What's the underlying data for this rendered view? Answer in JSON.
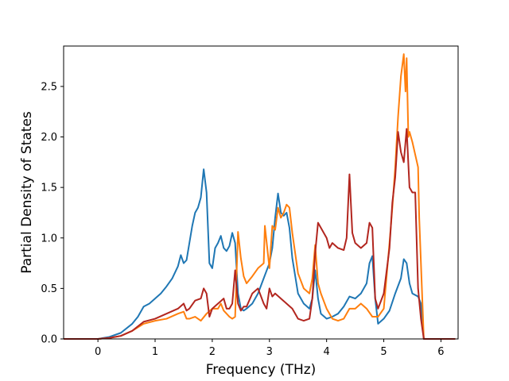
{
  "chart_data": {
    "type": "line",
    "title": "",
    "xlabel": "Frequency (THz)",
    "ylabel": "Partial Density of States",
    "xlim": [
      -0.6,
      6.3
    ],
    "ylim": [
      0.0,
      2.9
    ],
    "xticks": [
      0,
      1,
      2,
      3,
      4,
      5,
      6
    ],
    "yticks": [
      0.0,
      0.5,
      1.0,
      1.5,
      2.0,
      2.5
    ],
    "xtick_labels": [
      "0",
      "1",
      "2",
      "3",
      "4",
      "5",
      "6"
    ],
    "ytick_labels": [
      "0.0",
      "0.5",
      "1.0",
      "1.5",
      "2.0",
      "2.5"
    ],
    "grid": false,
    "legend": false,
    "series": [
      {
        "color": "#1f77b4",
        "x": [
          -0.6,
          -0.1,
          0.0,
          0.2,
          0.4,
          0.6,
          0.7,
          0.8,
          0.9,
          1.0,
          1.1,
          1.2,
          1.3,
          1.4,
          1.45,
          1.5,
          1.55,
          1.6,
          1.65,
          1.7,
          1.75,
          1.8,
          1.85,
          1.9,
          1.95,
          2.0,
          2.05,
          2.1,
          2.15,
          2.2,
          2.25,
          2.3,
          2.35,
          2.4,
          2.45,
          2.5,
          2.55,
          2.6,
          2.7,
          2.8,
          2.9,
          3.0,
          3.05,
          3.1,
          3.15,
          3.2,
          3.25,
          3.3,
          3.35,
          3.4,
          3.5,
          3.6,
          3.7,
          3.75,
          3.8,
          3.85,
          3.9,
          4.0,
          4.1,
          4.2,
          4.3,
          4.4,
          4.5,
          4.6,
          4.7,
          4.75,
          4.8,
          4.85,
          4.9,
          5.0,
          5.1,
          5.2,
          5.3,
          5.35,
          5.4,
          5.45,
          5.5,
          5.6,
          5.65,
          5.7,
          6.25
        ],
        "y": [
          0.0,
          0.0,
          0.0,
          0.02,
          0.06,
          0.15,
          0.22,
          0.32,
          0.35,
          0.4,
          0.45,
          0.52,
          0.6,
          0.72,
          0.83,
          0.75,
          0.78,
          0.95,
          1.12,
          1.25,
          1.3,
          1.4,
          1.68,
          1.45,
          0.75,
          0.7,
          0.9,
          0.95,
          1.02,
          0.9,
          0.87,
          0.92,
          1.05,
          0.95,
          0.45,
          0.3,
          0.28,
          0.3,
          0.35,
          0.45,
          0.6,
          0.75,
          0.9,
          1.2,
          1.44,
          1.25,
          1.22,
          1.25,
          1.1,
          0.8,
          0.45,
          0.35,
          0.3,
          0.4,
          0.68,
          0.4,
          0.25,
          0.2,
          0.22,
          0.25,
          0.32,
          0.42,
          0.4,
          0.45,
          0.55,
          0.75,
          0.82,
          0.4,
          0.15,
          0.2,
          0.28,
          0.45,
          0.6,
          0.79,
          0.75,
          0.55,
          0.45,
          0.42,
          0.35,
          0.0,
          0.0
        ]
      },
      {
        "color": "#ff7f0e",
        "x": [
          -0.6,
          -0.1,
          0.0,
          0.2,
          0.4,
          0.6,
          0.8,
          1.0,
          1.2,
          1.4,
          1.5,
          1.55,
          1.6,
          1.7,
          1.8,
          1.9,
          2.0,
          2.1,
          2.15,
          2.2,
          2.3,
          2.35,
          2.4,
          2.45,
          2.5,
          2.55,
          2.6,
          2.7,
          2.8,
          2.9,
          2.92,
          3.0,
          3.05,
          3.1,
          3.15,
          3.2,
          3.25,
          3.3,
          3.35,
          3.4,
          3.5,
          3.6,
          3.7,
          3.75,
          3.8,
          3.85,
          3.9,
          4.0,
          4.1,
          4.2,
          4.3,
          4.4,
          4.5,
          4.6,
          4.7,
          4.8,
          4.9,
          5.0,
          5.1,
          5.15,
          5.2,
          5.25,
          5.3,
          5.35,
          5.38,
          5.4,
          5.43,
          5.45,
          5.5,
          5.6,
          5.62,
          5.7,
          6.25
        ],
        "y": [
          0.0,
          0.0,
          0.0,
          0.01,
          0.03,
          0.08,
          0.15,
          0.18,
          0.2,
          0.25,
          0.27,
          0.2,
          0.2,
          0.22,
          0.18,
          0.25,
          0.3,
          0.3,
          0.35,
          0.28,
          0.22,
          0.2,
          0.22,
          1.06,
          0.8,
          0.62,
          0.55,
          0.62,
          0.7,
          0.75,
          1.12,
          0.7,
          1.12,
          1.08,
          1.3,
          1.2,
          1.25,
          1.33,
          1.3,
          1.05,
          0.65,
          0.5,
          0.45,
          0.6,
          0.93,
          0.55,
          0.45,
          0.3,
          0.2,
          0.18,
          0.2,
          0.3,
          0.3,
          0.35,
          0.3,
          0.22,
          0.22,
          0.3,
          0.95,
          1.3,
          1.7,
          2.2,
          2.6,
          2.82,
          2.45,
          2.78,
          2.0,
          2.05,
          1.95,
          1.7,
          1.2,
          0.0,
          0.0
        ]
      },
      {
        "color": "#b2261f",
        "x": [
          -0.6,
          -0.1,
          0.0,
          0.2,
          0.4,
          0.6,
          0.8,
          1.0,
          1.2,
          1.4,
          1.5,
          1.55,
          1.6,
          1.7,
          1.8,
          1.85,
          1.9,
          1.95,
          2.0,
          2.1,
          2.2,
          2.25,
          2.3,
          2.35,
          2.4,
          2.45,
          2.5,
          2.55,
          2.6,
          2.7,
          2.8,
          2.9,
          2.95,
          3.0,
          3.05,
          3.1,
          3.2,
          3.3,
          3.4,
          3.5,
          3.6,
          3.7,
          3.75,
          3.8,
          3.85,
          3.9,
          4.0,
          4.05,
          4.1,
          4.2,
          4.3,
          4.35,
          4.4,
          4.45,
          4.5,
          4.6,
          4.7,
          4.75,
          4.8,
          4.85,
          4.9,
          5.0,
          5.1,
          5.15,
          5.2,
          5.25,
          5.3,
          5.35,
          5.4,
          5.45,
          5.5,
          5.55,
          5.6,
          5.65,
          5.7,
          6.25
        ],
        "y": [
          0.0,
          0.0,
          0.0,
          0.01,
          0.03,
          0.08,
          0.17,
          0.2,
          0.25,
          0.3,
          0.35,
          0.28,
          0.3,
          0.38,
          0.4,
          0.5,
          0.45,
          0.22,
          0.3,
          0.35,
          0.4,
          0.3,
          0.3,
          0.35,
          0.68,
          0.35,
          0.28,
          0.32,
          0.32,
          0.45,
          0.5,
          0.35,
          0.3,
          0.5,
          0.42,
          0.45,
          0.4,
          0.35,
          0.3,
          0.2,
          0.18,
          0.2,
          0.4,
          0.85,
          1.15,
          1.1,
          1.0,
          0.9,
          0.95,
          0.9,
          0.88,
          1.0,
          1.63,
          1.05,
          0.95,
          0.9,
          0.95,
          1.15,
          1.1,
          0.4,
          0.3,
          0.45,
          0.9,
          1.35,
          1.6,
          2.05,
          1.85,
          1.75,
          2.08,
          1.5,
          1.45,
          1.45,
          0.5,
          0.2,
          0.0,
          0.0
        ]
      }
    ]
  }
}
